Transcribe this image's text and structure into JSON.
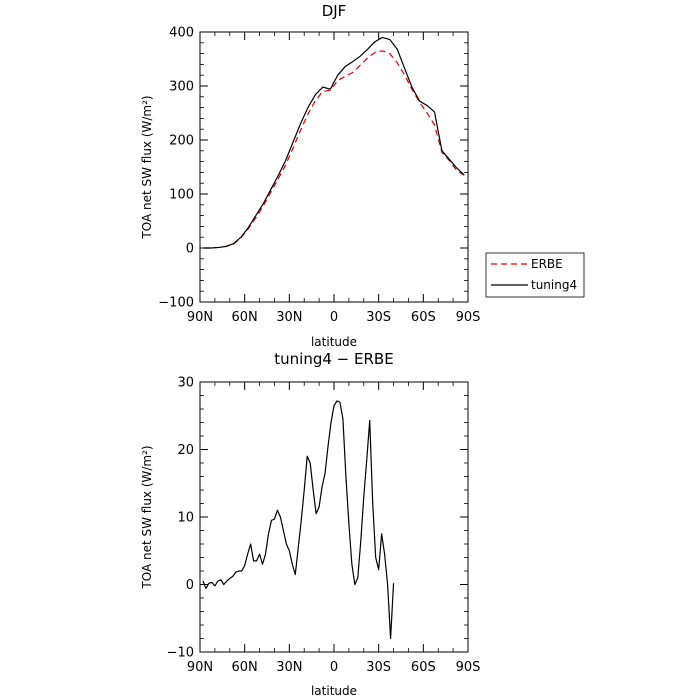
{
  "chart_data": [
    {
      "type": "line",
      "title": "DJF",
      "xlabel": "latitude",
      "ylabel": "TOA net SW flux (W/m²)",
      "xlim": [
        90,
        -90
      ],
      "ylim": [
        -100,
        400
      ],
      "x_ticks": [
        90,
        60,
        30,
        0,
        -30,
        -60,
        -90
      ],
      "x_tick_labels": [
        "90N",
        "60N",
        "30N",
        "0",
        "30S",
        "60S",
        "90S"
      ],
      "y_ticks": [
        -100,
        0,
        100,
        200,
        300,
        400
      ],
      "y_tick_labels": [
        "−100",
        "0",
        "100",
        "200",
        "300",
        "400"
      ],
      "legend": "outside-right",
      "series": [
        {
          "name": "ERBE",
          "color": "#dd0000",
          "dash": "dashed",
          "points": [
            [
              87.5,
              0
            ],
            [
              82.5,
              0
            ],
            [
              77.5,
              1
            ],
            [
              72.5,
              3
            ],
            [
              67.5,
              7
            ],
            [
              62.5,
              19
            ],
            [
              57.5,
              36
            ],
            [
              52.5,
              56
            ],
            [
              47.5,
              78
            ],
            [
              42.5,
              103
            ],
            [
              37.5,
              128
            ],
            [
              32.5,
              154
            ],
            [
              27.5,
              185
            ],
            [
              22.5,
              218
            ],
            [
              17.5,
              248
            ],
            [
              12.5,
              273
            ],
            [
              7.5,
              290
            ],
            [
              2.5,
              292
            ],
            [
              -2.5,
              310
            ],
            [
              -7.5,
              318
            ],
            [
              -12.5,
              325
            ],
            [
              -17.5,
              338
            ],
            [
              -22.5,
              352
            ],
            [
              -27.5,
              362
            ],
            [
              -32.5,
              365
            ],
            [
              -37.5,
              360
            ],
            [
              -42.5,
              343
            ],
            [
              -47.5,
              320
            ],
            [
              -52.5,
              293
            ],
            [
              -57.5,
              270
            ],
            [
              -62.5,
              250
            ],
            [
              -67.5,
              228
            ],
            [
              -72.5,
              177
            ],
            [
              -77.5,
              162
            ],
            [
              -82.5,
              143
            ],
            [
              -87.5,
              135
            ]
          ]
        },
        {
          "name": "tuning4",
          "color": "#000000",
          "dash": "solid",
          "points": [
            [
              87.5,
              0
            ],
            [
              82.5,
              0
            ],
            [
              77.5,
              1
            ],
            [
              72.5,
              3
            ],
            [
              67.5,
              8
            ],
            [
              62.5,
              20
            ],
            [
              57.5,
              38
            ],
            [
              52.5,
              60
            ],
            [
              47.5,
              82
            ],
            [
              42.5,
              108
            ],
            [
              37.5,
              134
            ],
            [
              32.5,
              162
            ],
            [
              27.5,
              196
            ],
            [
              22.5,
              230
            ],
            [
              17.5,
              260
            ],
            [
              12.5,
              284
            ],
            [
              7.5,
              298
            ],
            [
              2.5,
              294
            ],
            [
              -2.5,
              320
            ],
            [
              -7.5,
              336
            ],
            [
              -12.5,
              345
            ],
            [
              -17.5,
              355
            ],
            [
              -22.5,
              368
            ],
            [
              -27.5,
              382
            ],
            [
              -32.5,
              390
            ],
            [
              -37.5,
              386
            ],
            [
              -42.5,
              368
            ],
            [
              -47.5,
              332
            ],
            [
              -52.5,
              297
            ],
            [
              -57.5,
              272
            ],
            [
              -62.5,
              264
            ],
            [
              -67.5,
              252
            ],
            [
              -72.5,
              180
            ],
            [
              -77.5,
              164
            ],
            [
              -82.5,
              148
            ],
            [
              -87.5,
              135
            ]
          ]
        }
      ]
    },
    {
      "type": "line",
      "title": "tuning4 − ERBE",
      "xlabel": "latitude",
      "ylabel": "TOA net SW flux (W/m²)",
      "xlim": [
        90,
        -90
      ],
      "ylim": [
        -10,
        30
      ],
      "x_ticks": [
        90,
        60,
        30,
        0,
        -30,
        -60,
        -90
      ],
      "x_tick_labels": [
        "90N",
        "60N",
        "30N",
        "0",
        "30S",
        "60S",
        "90S"
      ],
      "y_ticks": [
        -10,
        0,
        10,
        20,
        30
      ],
      "y_tick_labels": [
        "−10",
        "0",
        "10",
        "20",
        "30"
      ],
      "series": [
        {
          "color": "#000000",
          "dash": "solid",
          "points": [
            [
              88,
              0.5
            ],
            [
              86,
              -0.6
            ],
            [
              84,
              0.2
            ],
            [
              82,
              0.3
            ],
            [
              80,
              -0.2
            ],
            [
              78,
              0.5
            ],
            [
              76,
              0.7
            ],
            [
              74,
              0
            ],
            [
              72,
              0.5
            ],
            [
              70,
              0.9
            ],
            [
              68,
              1.2
            ],
            [
              66,
              1.8
            ],
            [
              64,
              2
            ],
            [
              62,
              2
            ],
            [
              60,
              2.8
            ],
            [
              58,
              4.5
            ],
            [
              56,
              6
            ],
            [
              54,
              3.5
            ],
            [
              52,
              3.5
            ],
            [
              50,
              4.5
            ],
            [
              48,
              3
            ],
            [
              46,
              4.5
            ],
            [
              44,
              7.5
            ],
            [
              42,
              9.5
            ],
            [
              40,
              9.7
            ],
            [
              38,
              11
            ],
            [
              36,
              10
            ],
            [
              34,
              8
            ],
            [
              32,
              6
            ],
            [
              30,
              5
            ],
            [
              28,
              3
            ],
            [
              26,
              1.5
            ],
            [
              24,
              5.5
            ],
            [
              22,
              9.5
            ],
            [
              20,
              14
            ],
            [
              18,
              19
            ],
            [
              16,
              18
            ],
            [
              14,
              14
            ],
            [
              12,
              10.5
            ],
            [
              10,
              11.5
            ],
            [
              8,
              14.5
            ],
            [
              6,
              16.5
            ],
            [
              4,
              20.5
            ],
            [
              2,
              24
            ],
            [
              0,
              26.5
            ],
            [
              -2,
              27.2
            ],
            [
              -4,
              27
            ],
            [
              -6,
              24.5
            ],
            [
              -8,
              16
            ],
            [
              -10,
              9
            ],
            [
              -12,
              3
            ],
            [
              -14,
              0
            ],
            [
              -16,
              1
            ],
            [
              -18,
              6.5
            ],
            [
              -20,
              13
            ],
            [
              -22,
              18.5
            ],
            [
              -24,
              24.3
            ],
            [
              -26,
              12
            ],
            [
              -28,
              4
            ],
            [
              -30,
              2.2
            ],
            [
              -32,
              7.5
            ],
            [
              -34,
              4.5
            ],
            [
              -36,
              0
            ],
            [
              -38,
              -8
            ],
            [
              -40,
              0.2
            ]
          ]
        }
      ]
    }
  ]
}
